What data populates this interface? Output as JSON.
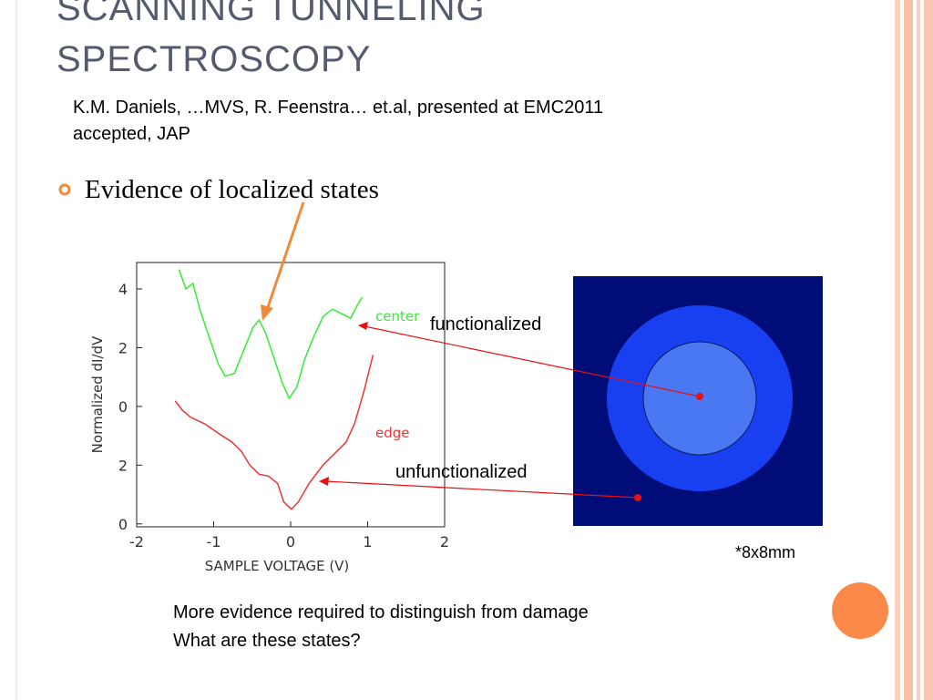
{
  "slide": {
    "title_lines": [
      "SCANNING TUNNELING",
      "SPECTROSCOPY"
    ],
    "citation_lines": [
      "K.M. Daniels, …MVS, R. Feenstra… et.al, presented at EMC2011",
      "accepted, JAP"
    ],
    "bullet": "Evidence of localized states",
    "diagram_labels": {
      "functionalized": "functionalized",
      "unfunctionalized": "unfunctionalized",
      "size": "*8x8mm"
    },
    "notes": [
      "More evidence required to distinguish from damage",
      "What are these states?"
    ]
  },
  "chart_data": {
    "type": "line",
    "y_label": "Normalized dI/dV",
    "x_label": "SAMPLE VOLTAGE (V)",
    "xlim": [
      -2,
      2
    ],
    "xticks": [
      -2,
      -1,
      0,
      1,
      2
    ],
    "ylim": [
      -0.1,
      8.9
    ],
    "yticks": [
      0,
      2,
      {
        "value": 4,
        "label": "0"
      },
      {
        "value": 6,
        "label": "2"
      },
      {
        "value": 8,
        "label": "4"
      }
    ],
    "series": [
      {
        "name": "center",
        "color": "#33ee33",
        "x": [
          -1.45,
          -1.36,
          -1.27,
          -1.18,
          -1.06,
          -0.94,
          -0.85,
          -0.73,
          -0.61,
          -0.49,
          -0.41,
          -0.33,
          -0.23,
          -0.11,
          -0.02,
          0.08,
          0.18,
          0.3,
          0.42,
          0.54,
          0.66,
          0.78,
          0.87,
          0.93
        ],
        "values": [
          8.66,
          8.0,
          8.19,
          7.31,
          6.38,
          5.44,
          5.03,
          5.13,
          5.91,
          6.69,
          6.94,
          6.53,
          5.75,
          4.81,
          4.28,
          4.66,
          5.59,
          6.38,
          7.06,
          7.31,
          7.16,
          7.0,
          7.47,
          7.72
        ]
      },
      {
        "name": "edge",
        "color": "#ee3333",
        "x": [
          -1.5,
          -1.41,
          -1.3,
          -1.12,
          -0.94,
          -0.76,
          -0.64,
          -0.53,
          -0.41,
          -0.29,
          -0.17,
          -0.09,
          0.01,
          0.1,
          0.24,
          0.42,
          0.6,
          0.72,
          0.83,
          0.95,
          1.07
        ],
        "values": [
          4.19,
          3.88,
          3.63,
          3.41,
          3.09,
          2.78,
          2.47,
          2.0,
          1.69,
          1.63,
          1.38,
          0.75,
          0.5,
          0.75,
          1.38,
          2.0,
          2.47,
          2.78,
          3.41,
          4.5,
          5.75
        ]
      }
    ]
  }
}
